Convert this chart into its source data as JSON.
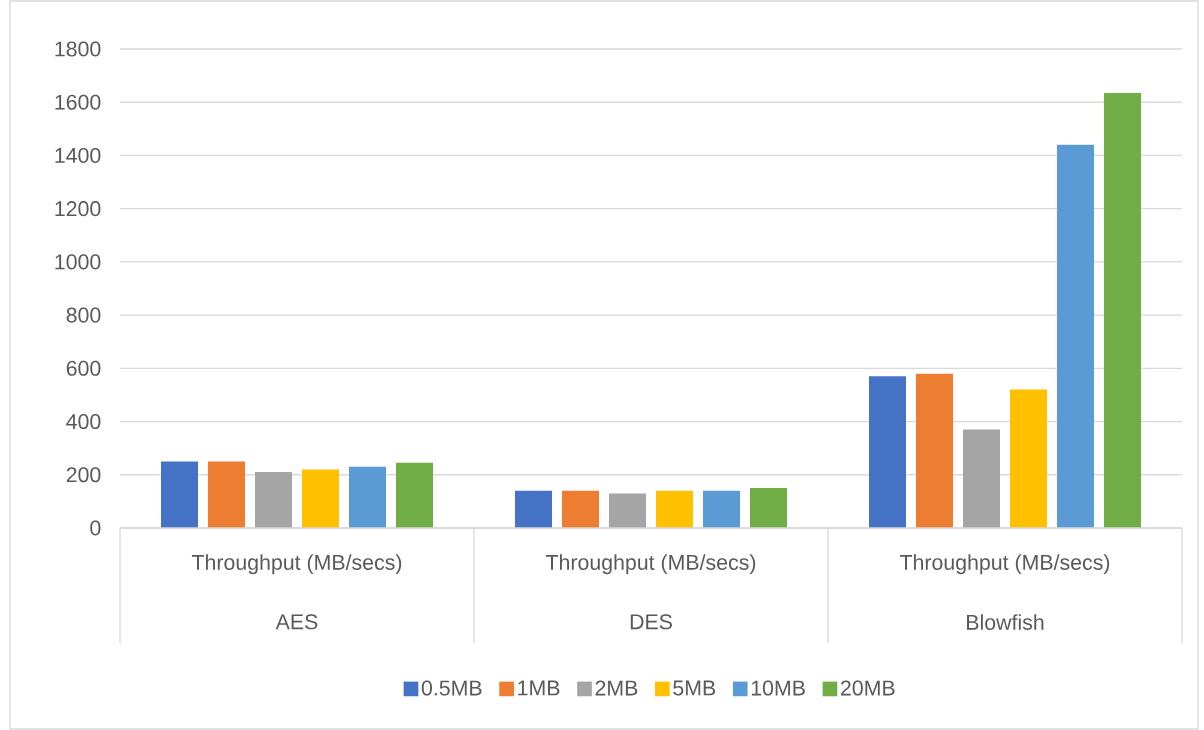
{
  "chart_data": {
    "type": "bar",
    "categories": [
      "AES",
      "DES",
      "Blowfish"
    ],
    "annotations": [
      "Throughput (MB/secs)",
      "Throughput (MB/secs)",
      "Throughput (MB/secs)"
    ],
    "series": [
      {
        "name": "0.5MB",
        "color": "#4472c4",
        "values": [
          250,
          140,
          570
        ]
      },
      {
        "name": "1MB",
        "color": "#ed7d31",
        "values": [
          250,
          140,
          580
        ]
      },
      {
        "name": "2MB",
        "color": "#a5a5a5",
        "values": [
          210,
          130,
          370
        ]
      },
      {
        "name": "5MB",
        "color": "#ffc000",
        "values": [
          220,
          140,
          520
        ]
      },
      {
        "name": "10MB",
        "color": "#5b9bd5",
        "values": [
          230,
          140,
          1440
        ]
      },
      {
        "name": "20MB",
        "color": "#70ad47",
        "values": [
          245,
          150,
          1635
        ]
      }
    ],
    "ylim": [
      0,
      1800
    ],
    "yticks": [
      0,
      200,
      400,
      600,
      800,
      1000,
      1200,
      1400,
      1600,
      1800
    ],
    "grid": "y",
    "legend": "bottom"
  }
}
